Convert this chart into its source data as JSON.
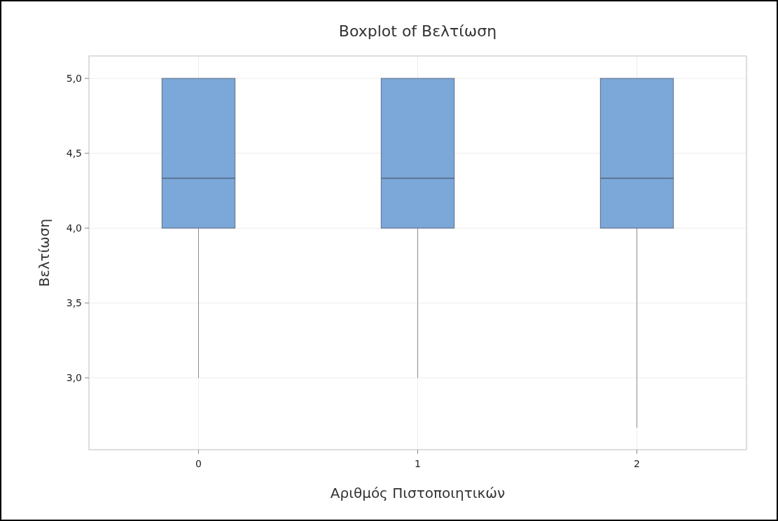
{
  "chart_data": {
    "type": "box",
    "title": "Boxplot of Βελτίωση",
    "xlabel": "Αριθμός Πιστοποιητικών",
    "ylabel": "Βελτίωση",
    "categories": [
      "0",
      "1",
      "2"
    ],
    "boxes": [
      {
        "low": 3,
        "q1": 4,
        "median": 4.333,
        "q3": 5,
        "high": 5
      },
      {
        "low": 3,
        "q1": 4,
        "median": 4.333,
        "q3": 5,
        "high": 5
      },
      {
        "low": 2.667,
        "q1": 4,
        "median": 4.333,
        "q3": 5,
        "high": 5
      }
    ],
    "color": "#7ba7d9",
    "ylim": [
      2.52,
      5.15
    ],
    "yticks": [
      {
        "value": 3,
        "label": "3,0"
      },
      {
        "value": 3.5,
        "label": "3,5"
      },
      {
        "value": 4,
        "label": "4,0"
      },
      {
        "value": 4.5,
        "label": "4,5"
      },
      {
        "value": 5,
        "label": "5,0"
      }
    ],
    "grid": true
  }
}
